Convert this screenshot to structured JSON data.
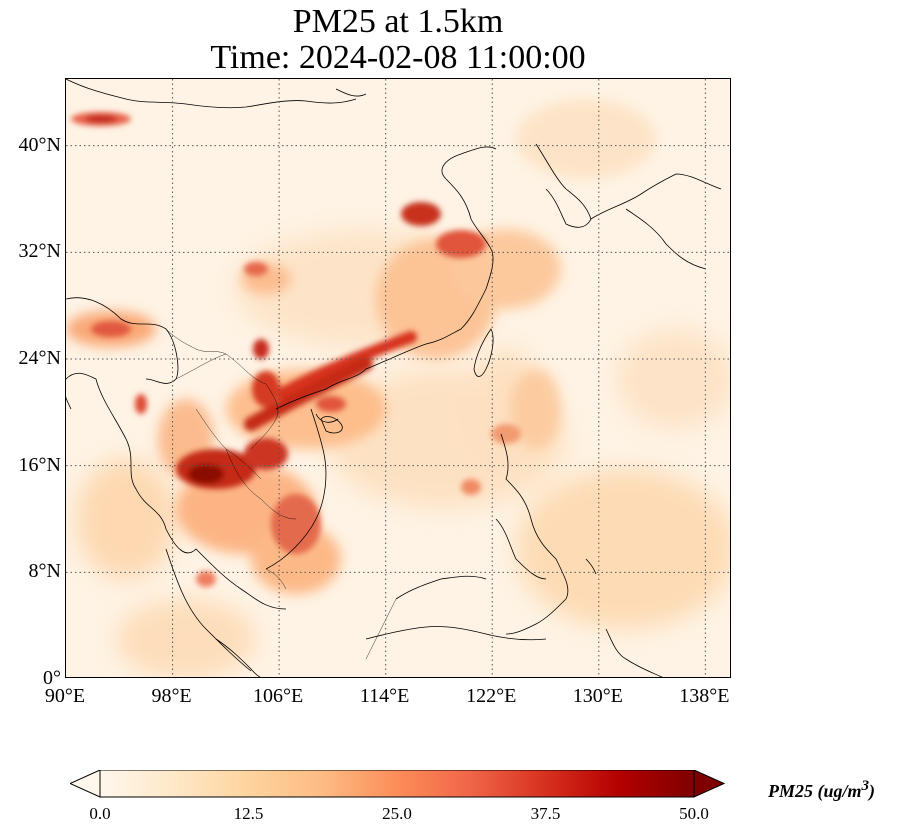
{
  "title": {
    "line1": "PM25 at 1.5km",
    "line2": "Time: 2024-02-08 11:00:00"
  },
  "map": {
    "extent": {
      "lon": [
        90,
        140
      ],
      "lat": [
        0,
        45
      ]
    },
    "gridlines": "dotted",
    "lon_ticks": [
      {
        "value": 90,
        "label": "90°E"
      },
      {
        "value": 98,
        "label": "98°E"
      },
      {
        "value": 106,
        "label": "106°E"
      },
      {
        "value": 114,
        "label": "114°E"
      },
      {
        "value": 122,
        "label": "122°E"
      },
      {
        "value": 130,
        "label": "130°E"
      },
      {
        "value": 138,
        "label": "138°E"
      }
    ],
    "lat_ticks": [
      {
        "value": 0,
        "label": "0°"
      },
      {
        "value": 8,
        "label": "8°N"
      },
      {
        "value": 16,
        "label": "16°N"
      },
      {
        "value": 24,
        "label": "24°N"
      },
      {
        "value": 32,
        "label": "32°N"
      },
      {
        "value": 40,
        "label": "40°N"
      }
    ],
    "colormap": "OrRd"
  },
  "colorbar": {
    "ticks": [
      "0.0",
      "12.5",
      "25.0",
      "37.5",
      "50.0"
    ],
    "range": [
      0,
      50
    ],
    "extend": "both",
    "label_html": "PM25 (ug/m<sup>3</sup>)",
    "colors": [
      "#fff7ec",
      "#fee8c8",
      "#fdd49e",
      "#fdbb84",
      "#fc8d59",
      "#ef6548",
      "#d7301f",
      "#b30000",
      "#7f0000"
    ]
  }
}
